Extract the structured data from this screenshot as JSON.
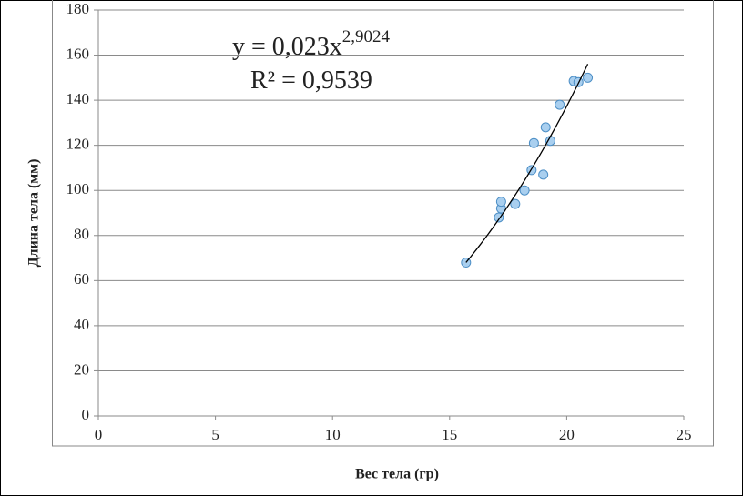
{
  "chart_data": {
    "type": "scatter",
    "xlabel": "Вес тела (гр)",
    "ylabel": "Длина тела (мм)",
    "series": [
      {
        "color": "#a9cfef",
        "x": [
          15.7,
          17.1,
          17.2,
          17.2,
          17.8,
          18.2,
          18.5,
          19.0,
          18.6,
          19.3,
          19.1,
          19.7,
          20.3,
          20.5,
          20.9
        ],
        "values": [
          68,
          88,
          92,
          95,
          94,
          100,
          109,
          107,
          121,
          122,
          128,
          138,
          148.5,
          148,
          150
        ]
      }
    ],
    "trendline": {
      "a": 0.023,
      "b": 2.9024,
      "equation": "y = 0,023x",
      "exponent_label": "2,9024",
      "r2_label": "R² = 0,9539"
    },
    "xlim": [
      0,
      25
    ],
    "xticks": [
      0,
      5,
      10,
      15,
      20,
      25
    ],
    "ylim": [
      0,
      180
    ],
    "yticks": [
      0,
      20,
      40,
      60,
      80,
      100,
      120,
      140,
      160,
      180
    ],
    "grid": true
  }
}
